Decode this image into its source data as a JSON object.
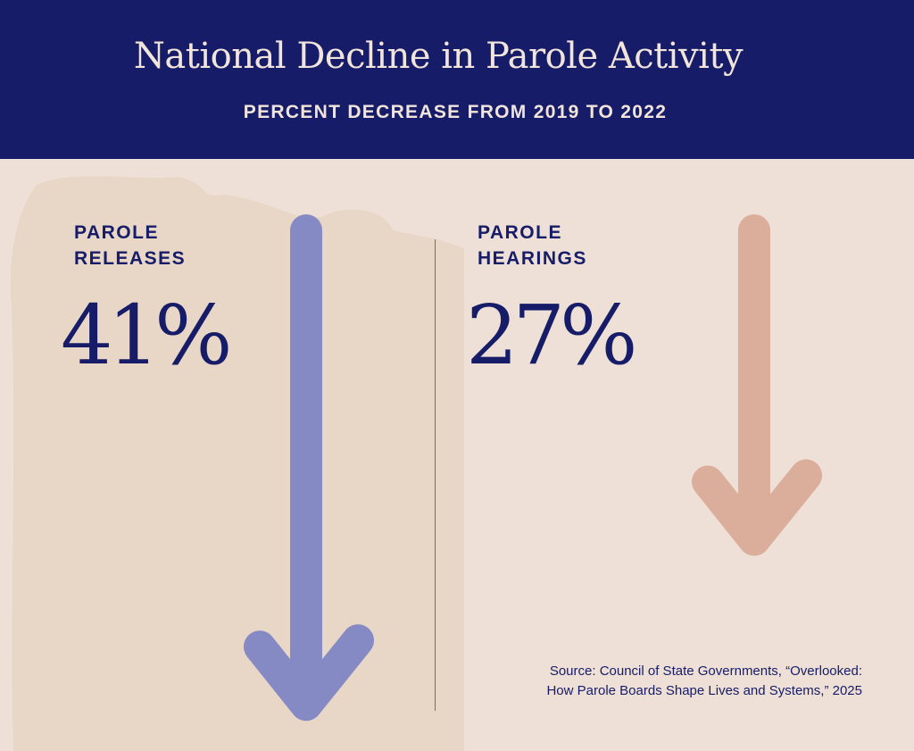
{
  "header": {
    "title": "National Decline in Parole Activity",
    "subtitle": "PERCENT DECREASE FROM 2019 TO 2022"
  },
  "chart_data": {
    "type": "bar",
    "title": "National Decline in Parole Activity",
    "subtitle": "PERCENT DECREASE FROM 2019 TO 2022",
    "categories": [
      "PAROLE RELEASES",
      "PAROLE HEARINGS"
    ],
    "values": [
      41,
      27
    ],
    "value_labels": [
      "41%",
      "27%"
    ],
    "unit": "%",
    "colors": [
      "#7f86c4",
      "#d9aa98"
    ]
  },
  "panels": [
    {
      "label_line1": "PAROLE",
      "label_line2": "RELEASES",
      "value": "41%"
    },
    {
      "label_line1": "PAROLE",
      "label_line2": "HEARINGS",
      "value": "27%"
    }
  ],
  "source": {
    "line1": "Source: Council of State Governments, “Overlooked:",
    "line2": "How Parole Boards Shape Lives and Systems,” 2025"
  }
}
